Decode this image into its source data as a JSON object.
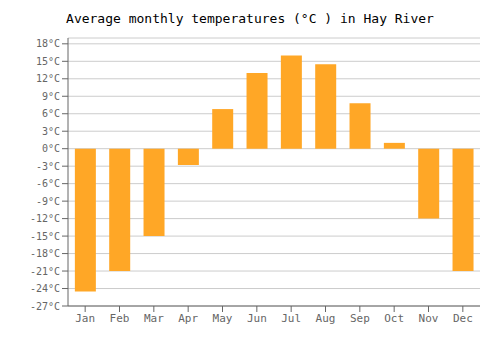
{
  "chart_data": {
    "type": "bar",
    "title": "Average monthly temperatures (°C ) in Hay River",
    "categories": [
      "Jan",
      "Feb",
      "Mar",
      "Apr",
      "May",
      "Jun",
      "Jul",
      "Aug",
      "Sep",
      "Oct",
      "Nov",
      "Dec"
    ],
    "values": [
      -24.5,
      -21.0,
      -15.0,
      -2.8,
      6.8,
      13.0,
      16.0,
      14.5,
      7.8,
      1.0,
      -12.0,
      -21.0
    ],
    "color": "#FFA726",
    "ylim": [
      -27,
      19
    ],
    "yticks": [
      {
        "value": -27,
        "label": "-27°C"
      },
      {
        "value": -24,
        "label": "-24°C"
      },
      {
        "value": -21,
        "label": "-21°C"
      },
      {
        "value": -18,
        "label": "-18°C"
      },
      {
        "value": -15,
        "label": "-15°C"
      },
      {
        "value": -12,
        "label": "-12°C"
      },
      {
        "value": -9,
        "label": "-9°C"
      },
      {
        "value": -6,
        "label": "-6°C"
      },
      {
        "value": -3,
        "label": "-3°C"
      },
      {
        "value": 0,
        "label": "0°C"
      },
      {
        "value": 3,
        "label": "3°C"
      },
      {
        "value": 6,
        "label": "6°C"
      },
      {
        "value": 9,
        "label": "9°C"
      },
      {
        "value": 12,
        "label": "12°C"
      },
      {
        "value": 15,
        "label": "15°C"
      },
      {
        "value": 18,
        "label": "18°C"
      }
    ],
    "grid": true
  }
}
